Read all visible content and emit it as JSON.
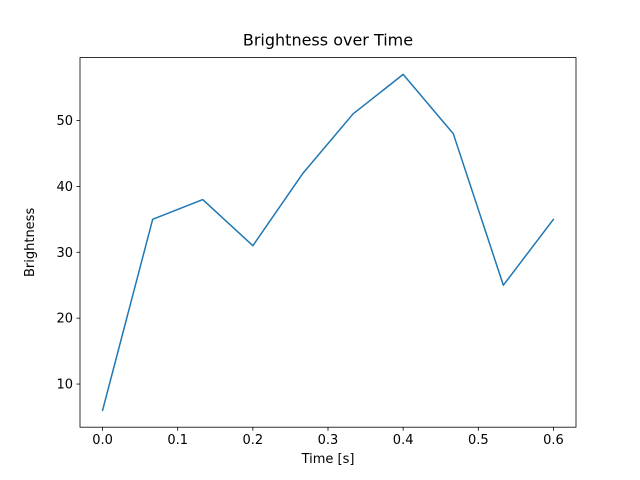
{
  "chart_data": {
    "type": "line",
    "title": "Brightness over Time",
    "xlabel": "Time [s]",
    "ylabel": "Brightness",
    "x": [
      0.0,
      0.0667,
      0.1333,
      0.2,
      0.2667,
      0.3333,
      0.4,
      0.4667,
      0.5333,
      0.6
    ],
    "series": [
      {
        "name": "brightness",
        "values": [
          6,
          35,
          38,
          31,
          42,
          51,
          57,
          48,
          25,
          35
        ]
      }
    ],
    "xlim": [
      -0.03,
      0.63
    ],
    "ylim": [
      3.45,
      59.55
    ],
    "xticks": [
      0.0,
      0.1,
      0.2,
      0.3,
      0.4,
      0.5,
      0.6
    ],
    "xtick_labels": [
      "0.0",
      "0.1",
      "0.2",
      "0.3",
      "0.4",
      "0.5",
      "0.6"
    ],
    "yticks": [
      10,
      20,
      30,
      40,
      50
    ],
    "ytick_labels": [
      "10",
      "20",
      "30",
      "40",
      "50"
    ],
    "line_color": "#1f77b4",
    "line_width": 1.5,
    "grid": false,
    "legend": "none",
    "background_color": "#ffffff",
    "spine_color": "#000000"
  }
}
